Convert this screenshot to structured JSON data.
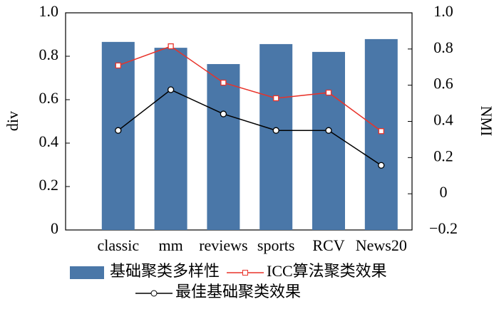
{
  "chart_data": {
    "type": "bar-line",
    "categories": [
      "classic",
      "mm",
      "reviews",
      "sports",
      "RCV",
      "News20"
    ],
    "ylabel": "div",
    "y2label": "NMI",
    "ylim": [
      0,
      1
    ],
    "yticks": [
      0,
      0.2,
      0.4,
      0.6,
      0.8,
      {
        "value": 1,
        "label": "1.0"
      }
    ],
    "y2lim": [
      -0.2,
      1
    ],
    "y2ticks": [
      {
        "value": -0.2,
        "label": "−0.2"
      },
      0,
      0.2,
      0.4,
      0.6,
      0.8,
      {
        "value": 1,
        "label": "1.0"
      }
    ],
    "series": [
      {
        "name": "基础聚类多样性",
        "type": "bar",
        "color": "#4a77a8",
        "values": [
          0.866,
          0.839,
          0.764,
          0.856,
          0.82,
          0.879
        ]
      },
      {
        "name": "ICC算法聚类效果",
        "type": "line",
        "marker": "square",
        "axis": "y2",
        "color": "#e8332a",
        "values": [
          0.709,
          0.815,
          0.614,
          0.528,
          0.559,
          0.346
        ]
      },
      {
        "name": "最佳基础聚类效果",
        "type": "line",
        "marker": "circle",
        "axis": "y2",
        "color": "#000000",
        "values": [
          0.35,
          0.575,
          0.441,
          0.35,
          0.35,
          0.157
        ]
      }
    ]
  }
}
